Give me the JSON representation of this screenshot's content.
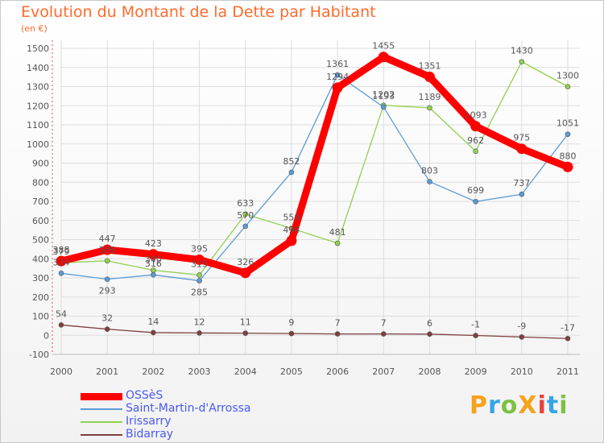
{
  "title": "Evolution du Montant de la Dette par Habitant",
  "unit_label": "(en €)",
  "logo_text": "ProXiti",
  "logo_colors": [
    "#f7a21b",
    "#34a6e8",
    "#7cc242",
    "#f7a21b",
    "#e8423a",
    "#34a6e8",
    "#7cc242"
  ],
  "chart_data": {
    "type": "line",
    "categories": [
      "2000",
      "2001",
      "2002",
      "2003",
      "2004",
      "2005",
      "2006",
      "2007",
      "2008",
      "2009",
      "2010",
      "2011"
    ],
    "ylim": [
      -100,
      1500
    ],
    "yticks": [
      -100,
      0,
      100,
      200,
      300,
      400,
      500,
      600,
      700,
      800,
      900,
      1000,
      1100,
      1200,
      1300,
      1400,
      1500
    ],
    "grid": true,
    "legend_position": "bottom-left",
    "series": [
      {
        "name": "OSSèS",
        "color": "#ff0000",
        "values": [
          388,
          447,
          423,
          395,
          326,
          494,
          1294,
          1455,
          1351,
          1093,
          975,
          880
        ]
      },
      {
        "name": "Saint-Martin-d'Arrossa",
        "color": "#5b9bd5",
        "values": [
          324,
          293,
          316,
          285,
          570,
          852,
          1361,
          1193,
          803,
          699,
          737,
          1051
        ]
      },
      {
        "name": "Irissarry",
        "color": "#92d050",
        "values": [
          379,
          389,
          340,
          315,
          633,
          559,
          481,
          1202,
          1189,
          962,
          1430,
          1300
        ]
      },
      {
        "name": "Bidarray",
        "color": "#7f3f3f",
        "values": [
          54,
          32,
          14,
          12,
          11,
          9,
          7,
          7,
          6,
          -1,
          -9,
          -17
        ]
      }
    ]
  }
}
